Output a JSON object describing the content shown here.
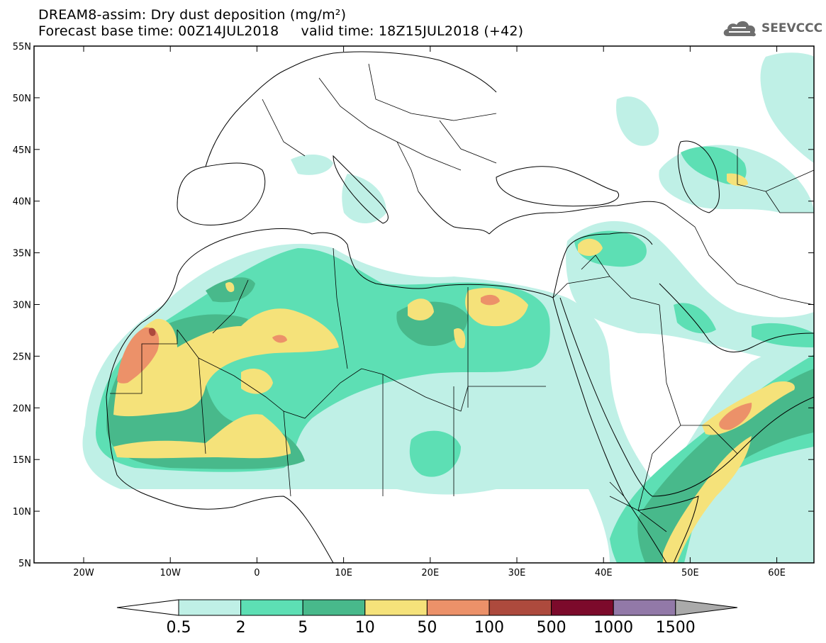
{
  "title": {
    "line1": "DREAM8-assim: Dry dust deposition (mg/m²)",
    "line2": "Forecast base time: 00Z14JUL2018     valid time: 18Z15JUL2018 (+42)"
  },
  "logo": {
    "text": "SEEVCCC",
    "icon": "cloud-icon"
  },
  "axes": {
    "lat_labels": [
      "55N",
      "50N",
      "45N",
      "40N",
      "35N",
      "30N",
      "25N",
      "20N",
      "15N",
      "10N",
      "5N"
    ],
    "lon_labels": [
      "20W",
      "10W",
      "0",
      "10E",
      "20E",
      "30E",
      "40E",
      "50E",
      "60E"
    ]
  },
  "colorbar": {
    "labels": [
      "0.5",
      "2",
      "5",
      "10",
      "50",
      "100",
      "500",
      "1000",
      "1500"
    ],
    "colors": [
      "#ffffff",
      "#bff0e6",
      "#5ddfb4",
      "#48b98b",
      "#f5e27a",
      "#ec9169",
      "#ad4a3d",
      "#7c0a2b",
      "#9279a8",
      "#aaaaaa"
    ]
  }
}
